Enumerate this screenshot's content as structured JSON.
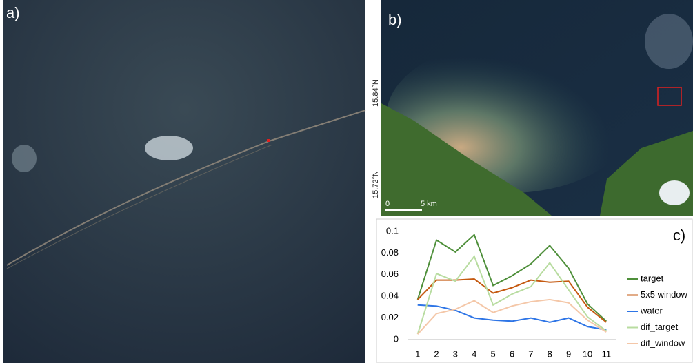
{
  "panel_labels": [
    "a)",
    "b)",
    "c)"
  ],
  "map_labels": {
    "lat_top": "15.84°N",
    "lat_bottom": "15.72°N",
    "scale_start": "0",
    "scale_end": "5 km"
  },
  "chart_data": {
    "type": "line",
    "categories": [
      "1",
      "2",
      "3",
      "4",
      "5",
      "6",
      "7",
      "8",
      "9",
      "10",
      "11"
    ],
    "series": [
      {
        "name": "target",
        "color": "#4e8f3a",
        "values": [
          0.037,
          0.092,
          0.081,
          0.097,
          0.05,
          0.059,
          0.07,
          0.087,
          0.066,
          0.033,
          0.017
        ]
      },
      {
        "name": "5x5 window",
        "color": "#c55a11",
        "values": [
          0.037,
          0.055,
          0.055,
          0.056,
          0.043,
          0.048,
          0.055,
          0.053,
          0.054,
          0.03,
          0.016
        ]
      },
      {
        "name": "water",
        "color": "#2e75e6",
        "values": [
          0.032,
          0.031,
          0.027,
          0.02,
          0.018,
          0.017,
          0.02,
          0.016,
          0.02,
          0.012,
          0.009
        ]
      },
      {
        "name": "dif_target",
        "color": "#b8dca0",
        "values": [
          0.005,
          0.061,
          0.054,
          0.077,
          0.032,
          0.042,
          0.049,
          0.071,
          0.046,
          0.021,
          0.008
        ]
      },
      {
        "name": "dif_window",
        "color": "#f4c7a8",
        "values": [
          0.005,
          0.024,
          0.028,
          0.036,
          0.025,
          0.031,
          0.035,
          0.037,
          0.034,
          0.018,
          0.007
        ]
      }
    ],
    "ylim": [
      0,
      0.1
    ],
    "yticks": [
      0,
      0.02,
      0.04,
      0.06,
      0.08,
      0.1
    ],
    "grid": false
  }
}
